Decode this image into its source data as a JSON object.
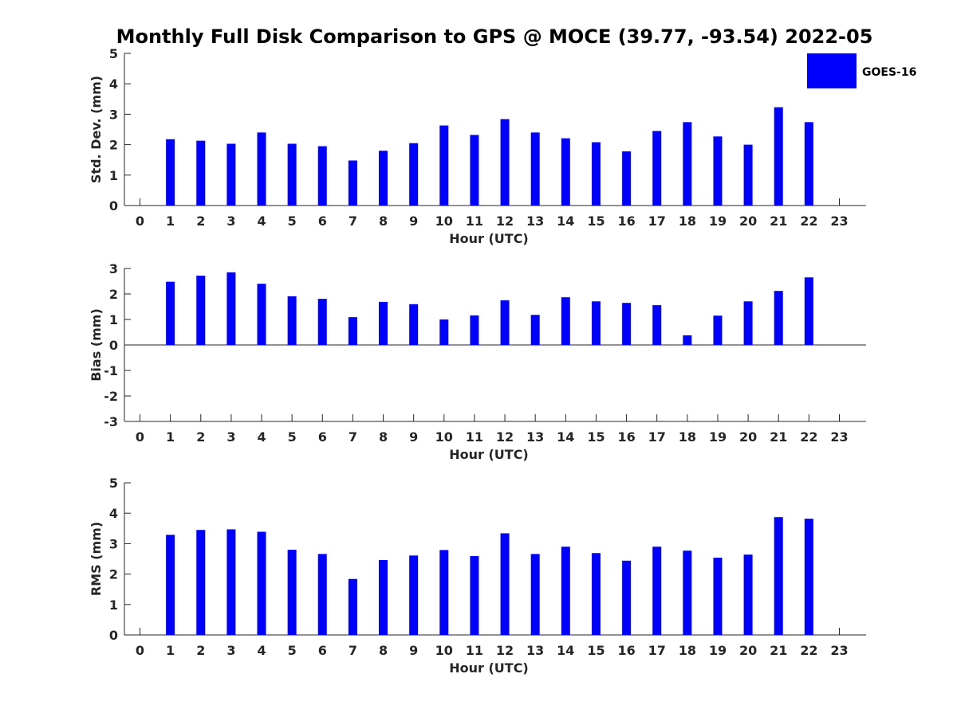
{
  "figure_title": "Monthly Full Disk Comparison to GPS @ MOCE (39.77, -93.54) 2022-05",
  "legend": {
    "label": "GOES-16",
    "color": "#0000ff"
  },
  "chart_data": [
    {
      "type": "bar",
      "xlabel": "Hour (UTC)",
      "ylabel": "Std. Dev. (mm)",
      "categories": [
        0,
        1,
        2,
        3,
        4,
        5,
        6,
        7,
        8,
        9,
        10,
        11,
        12,
        13,
        14,
        15,
        16,
        17,
        18,
        19,
        20,
        21,
        22,
        23
      ],
      "ylim": [
        0,
        5
      ],
      "yticks": [
        0,
        1,
        2,
        3,
        4,
        5
      ],
      "series": [
        {
          "name": "GOES-16",
          "color": "#0000ff",
          "values": [
            null,
            2.18,
            2.13,
            2.03,
            2.4,
            2.03,
            1.95,
            1.48,
            1.8,
            2.05,
            2.63,
            2.32,
            2.84,
            2.4,
            2.21,
            2.08,
            1.78,
            2.45,
            2.74,
            2.27,
            2.0,
            3.23,
            2.74,
            null
          ]
        }
      ],
      "grid": false,
      "legend_position": "top-right"
    },
    {
      "type": "bar",
      "xlabel": "Hour (UTC)",
      "ylabel": "Bias (mm)",
      "categories": [
        0,
        1,
        2,
        3,
        4,
        5,
        6,
        7,
        8,
        9,
        10,
        11,
        12,
        13,
        14,
        15,
        16,
        17,
        18,
        19,
        20,
        21,
        22,
        23
      ],
      "ylim": [
        -3,
        3
      ],
      "yticks": [
        -3,
        -2,
        -1,
        0,
        1,
        2,
        3
      ],
      "series": [
        {
          "name": "GOES-16",
          "color": "#0000ff",
          "values": [
            null,
            2.48,
            2.72,
            2.85,
            2.4,
            1.91,
            1.81,
            1.09,
            1.69,
            1.6,
            1.0,
            1.16,
            1.75,
            1.18,
            1.87,
            1.71,
            1.65,
            1.56,
            0.38,
            1.15,
            1.71,
            2.12,
            2.65,
            null
          ]
        }
      ],
      "grid": false
    },
    {
      "type": "bar",
      "xlabel": "Hour (UTC)",
      "ylabel": "RMS (mm)",
      "categories": [
        0,
        1,
        2,
        3,
        4,
        5,
        6,
        7,
        8,
        9,
        10,
        11,
        12,
        13,
        14,
        15,
        16,
        17,
        18,
        19,
        20,
        21,
        22,
        23
      ],
      "ylim": [
        0,
        5
      ],
      "yticks": [
        0,
        1,
        2,
        3,
        4,
        5
      ],
      "series": [
        {
          "name": "GOES-16",
          "color": "#0000ff",
          "values": [
            null,
            3.29,
            3.45,
            3.47,
            3.39,
            2.8,
            2.66,
            1.84,
            2.46,
            2.61,
            2.79,
            2.59,
            3.34,
            2.66,
            2.9,
            2.69,
            2.44,
            2.9,
            2.77,
            2.54,
            2.64,
            3.87,
            3.82,
            null
          ]
        }
      ],
      "grid": false
    }
  ]
}
